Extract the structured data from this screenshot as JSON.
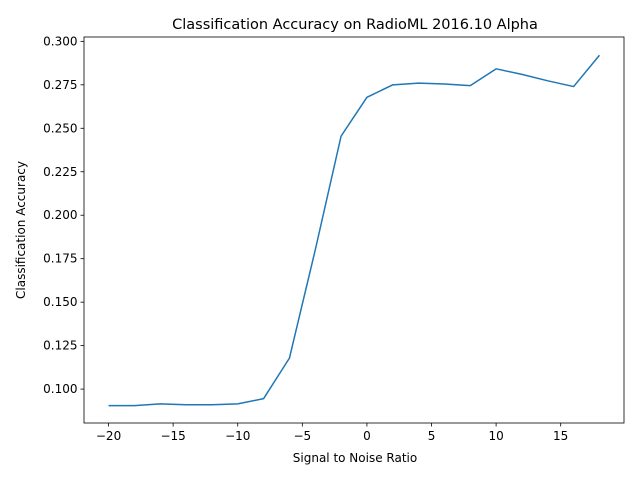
{
  "chart_data": {
    "type": "line",
    "title": "Classification Accuracy on RadioML 2016.10 Alpha",
    "xlabel": "Signal to Noise Ratio",
    "ylabel": "Classification Accuracy",
    "xlim": [
      -21.9,
      19.9
    ],
    "ylim": [
      0.0805,
      0.3025
    ],
    "xticks": [
      -20,
      -15,
      -10,
      -5,
      0,
      5,
      10,
      15
    ],
    "xtick_labels": [
      "−20",
      "−15",
      "−10",
      "−5",
      "0",
      "5",
      "10",
      "15"
    ],
    "yticks": [
      0.1,
      0.125,
      0.15,
      0.175,
      0.2,
      0.225,
      0.25,
      0.275,
      0.3
    ],
    "ytick_labels": [
      "0.100",
      "0.125",
      "0.150",
      "0.175",
      "0.200",
      "0.225",
      "0.250",
      "0.275",
      "0.300"
    ],
    "grid": false,
    "series": [
      {
        "color": "#1f77b4",
        "x": [
          -20,
          -18,
          -16,
          -14,
          -12,
          -10,
          -8,
          -6,
          -4,
          -2,
          0,
          2,
          4,
          6,
          8,
          10,
          12,
          14,
          16,
          18
        ],
        "y": [
          0.0905,
          0.0905,
          0.0915,
          0.091,
          0.091,
          0.0915,
          0.0945,
          0.1178,
          0.18,
          0.2455,
          0.2678,
          0.275,
          0.276,
          0.2755,
          0.2745,
          0.2842,
          0.281,
          0.2773,
          0.274,
          0.292
        ]
      }
    ]
  }
}
